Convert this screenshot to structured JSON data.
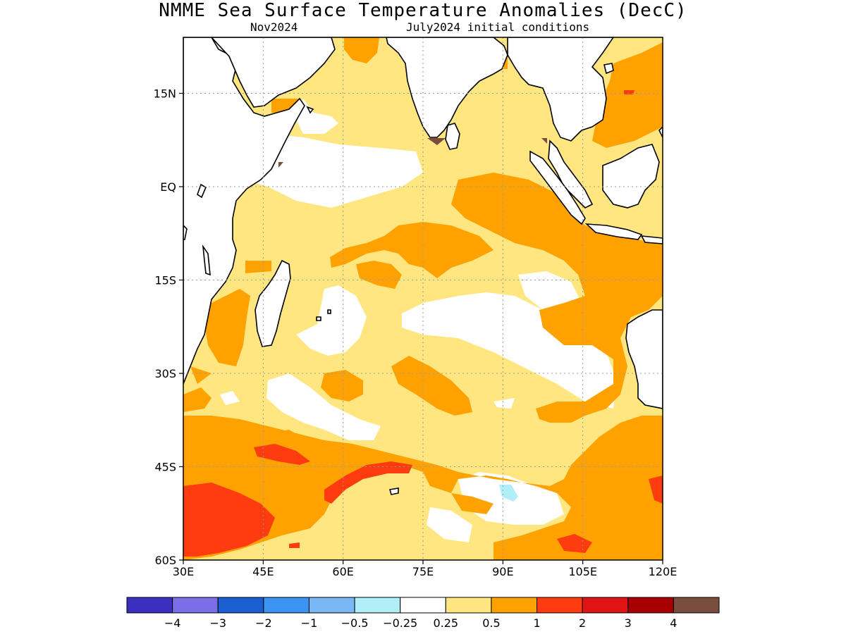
{
  "title": "NMME Sea Surface Temperature Anomalies (DecC)",
  "subtitle_left": "Nov2024",
  "subtitle_right": "July2024 initial conditions",
  "map": {
    "lon_range": [
      30,
      120
    ],
    "lat_range": [
      -60,
      24
    ],
    "x_ticks": [
      {
        "value": 30,
        "label": "30E"
      },
      {
        "value": 45,
        "label": "45E"
      },
      {
        "value": 60,
        "label": "60E"
      },
      {
        "value": 75,
        "label": "75E"
      },
      {
        "value": 90,
        "label": "90E"
      },
      {
        "value": 105,
        "label": "105E"
      },
      {
        "value": 120,
        "label": "120E"
      }
    ],
    "y_ticks": [
      {
        "value": 15,
        "label": "15N"
      },
      {
        "value": 0,
        "label": "EQ"
      },
      {
        "value": -15,
        "label": "15S"
      },
      {
        "value": -30,
        "label": "30S"
      },
      {
        "value": -45,
        "label": "45S"
      },
      {
        "value": -60,
        "label": "60S"
      }
    ],
    "grid": true
  },
  "colorbar": {
    "colors": [
      "#3a2fbf",
      "#7b6fe8",
      "#1a5fd0",
      "#3b94f2",
      "#7ab8f5",
      "#b0eef8",
      "#ffffff",
      "#ffe680",
      "#ffa200",
      "#ff3b10",
      "#e01414",
      "#a80000",
      "#7a4e3e"
    ],
    "labels": [
      "−4",
      "−3",
      "−2",
      "−1",
      "−0.5",
      "−0.25",
      "0.25",
      "0.5",
      "1",
      "2",
      "3",
      "4"
    ]
  }
}
